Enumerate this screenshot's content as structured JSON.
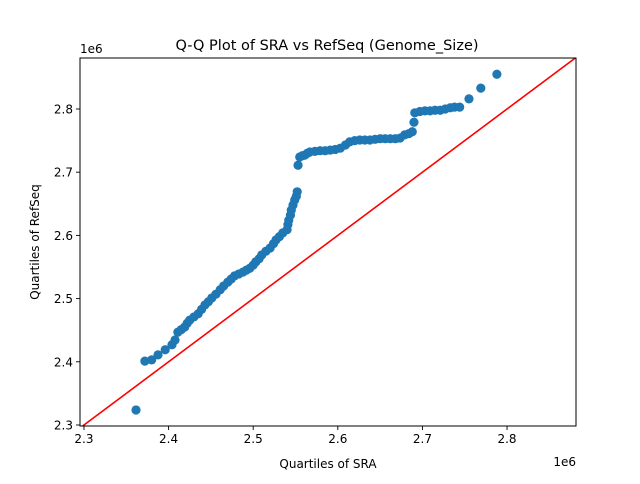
{
  "chart_data": {
    "type": "scatter",
    "title": "Q-Q Plot of SRA vs RefSeq (Genome_Size)",
    "xlabel": "Quartiles of SRA",
    "ylabel": "Quartiles of RefSeq",
    "x_offset_label": "1e6",
    "y_offset_label": "1e6",
    "xlim": [
      2.2953,
      2.8815
    ],
    "ylim": [
      2.2984,
      2.8807
    ],
    "xticks": [
      2.3,
      2.4,
      2.5,
      2.6,
      2.7,
      2.8
    ],
    "xtick_labels": [
      "2.3",
      "2.4",
      "2.5",
      "2.6",
      "2.7",
      "2.8"
    ],
    "yticks": [
      2.3,
      2.4,
      2.5,
      2.6,
      2.7,
      2.8
    ],
    "ytick_labels": [
      "2.3",
      "2.4",
      "2.5",
      "2.6",
      "2.7",
      "2.8"
    ],
    "grid": false,
    "marker_color": "#1f77b4",
    "reference_line": {
      "type": "y=x",
      "color": "#ff0000"
    },
    "points": [
      [
        2.3615,
        2.3237
      ],
      [
        2.372,
        2.401
      ],
      [
        2.38,
        2.403
      ],
      [
        2.3875,
        2.411
      ],
      [
        2.396,
        2.419
      ],
      [
        2.404,
        2.427
      ],
      [
        2.4076,
        2.4345
      ],
      [
        2.411,
        2.447
      ],
      [
        2.415,
        2.451
      ],
      [
        2.419,
        2.455
      ],
      [
        2.422,
        2.461
      ],
      [
        2.425,
        2.466
      ],
      [
        2.43,
        2.471
      ],
      [
        2.435,
        2.476
      ],
      [
        2.439,
        2.483
      ],
      [
        2.443,
        2.49
      ],
      [
        2.447,
        2.495
      ],
      [
        2.451,
        2.501
      ],
      [
        2.456,
        2.507
      ],
      [
        2.461,
        2.514
      ],
      [
        2.465,
        2.52
      ],
      [
        2.47,
        2.526
      ],
      [
        2.474,
        2.531
      ],
      [
        2.478,
        2.536
      ],
      [
        2.483,
        2.539
      ],
      [
        2.488,
        2.542
      ],
      [
        2.492,
        2.545
      ],
      [
        2.496,
        2.548
      ],
      [
        2.5,
        2.553
      ],
      [
        2.503,
        2.558
      ],
      [
        2.507,
        2.563
      ],
      [
        2.51,
        2.569
      ],
      [
        2.515,
        2.575
      ],
      [
        2.52,
        2.58
      ],
      [
        2.524,
        2.587
      ],
      [
        2.527,
        2.593
      ],
      [
        2.531,
        2.598
      ],
      [
        2.535,
        2.604
      ],
      [
        2.54,
        2.609
      ],
      [
        2.541,
        2.617
      ],
      [
        2.542,
        2.624
      ],
      [
        2.544,
        2.632
      ],
      [
        2.545,
        2.64
      ],
      [
        2.547,
        2.648
      ],
      [
        2.549,
        2.656
      ],
      [
        2.551,
        2.662
      ],
      [
        2.552,
        2.669
      ],
      [
        2.553,
        2.711
      ],
      [
        2.555,
        2.724
      ],
      [
        2.558,
        2.726
      ],
      [
        2.561,
        2.727
      ],
      [
        2.564,
        2.73
      ],
      [
        2.567,
        2.732
      ],
      [
        2.573,
        2.733
      ],
      [
        2.579,
        2.734
      ],
      [
        2.585,
        2.734
      ],
      [
        2.591,
        2.735
      ],
      [
        2.597,
        2.736
      ],
      [
        2.603,
        2.738
      ],
      [
        2.609,
        2.743
      ],
      [
        2.614,
        2.748
      ],
      [
        2.62,
        2.75
      ],
      [
        2.626,
        2.751
      ],
      [
        2.632,
        2.751
      ],
      [
        2.638,
        2.751
      ],
      [
        2.644,
        2.752
      ],
      [
        2.65,
        2.753
      ],
      [
        2.656,
        2.753
      ],
      [
        2.662,
        2.753
      ],
      [
        2.668,
        2.753
      ],
      [
        2.6735,
        2.754
      ],
      [
        2.679,
        2.759
      ],
      [
        2.684,
        2.761
      ],
      [
        2.688,
        2.764
      ],
      [
        2.69,
        2.779
      ],
      [
        2.691,
        2.794
      ],
      [
        2.697,
        2.796
      ],
      [
        2.703,
        2.797
      ],
      [
        2.709,
        2.797
      ],
      [
        2.715,
        2.798
      ],
      [
        2.721,
        2.798
      ],
      [
        2.727,
        2.8
      ],
      [
        2.733,
        2.802
      ],
      [
        2.738,
        2.803
      ],
      [
        2.744,
        2.803
      ],
      [
        2.755,
        2.816
      ],
      [
        2.769,
        2.833
      ],
      [
        2.788,
        2.855
      ]
    ]
  }
}
